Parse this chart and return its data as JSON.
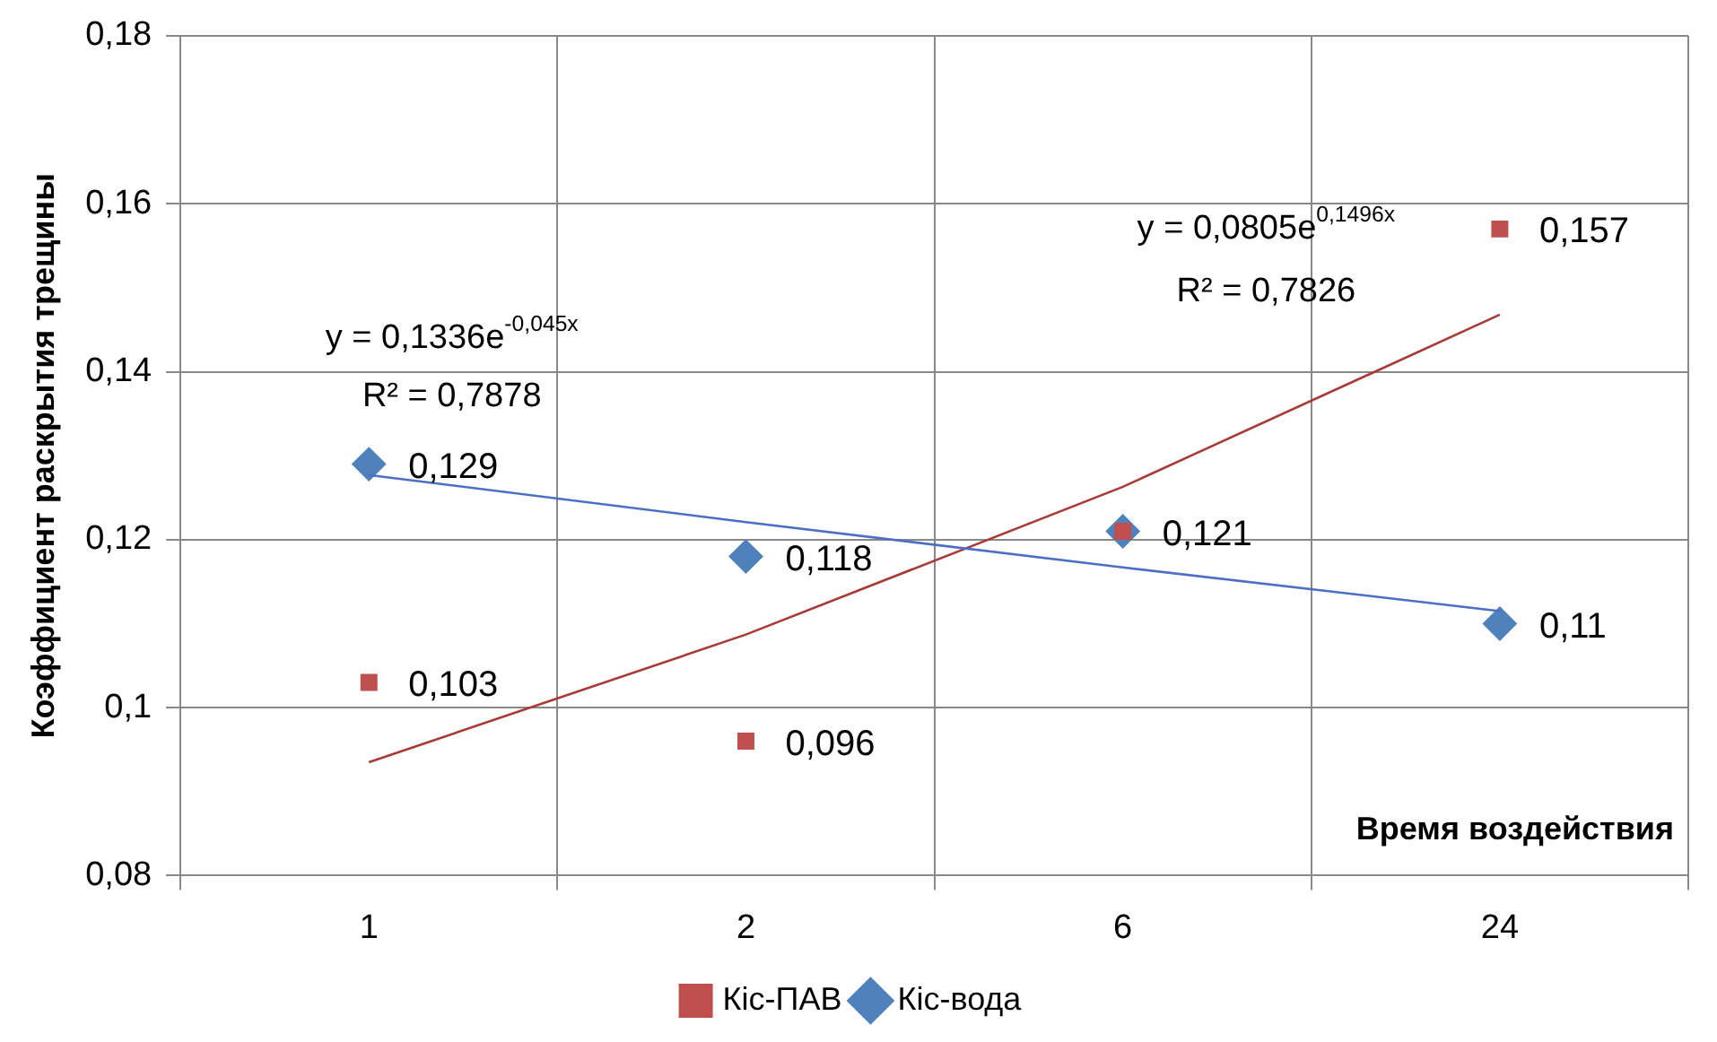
{
  "chart_data": {
    "type": "scatter",
    "xlabel": "Время воздействия",
    "ylabel": "Коэффициент раскрытия трещины",
    "categories": [
      "1",
      "2",
      "6",
      "24"
    ],
    "series": [
      {
        "name": "Кіс-вода",
        "color": "#4f81bd",
        "marker": "diamond",
        "values": [
          0.129,
          0.118,
          0.121,
          0.11
        ],
        "value_labels": [
          "0,129",
          "0,118",
          "0,121",
          "0,11"
        ]
      },
      {
        "name": "Кіс-ПАВ",
        "color": "#c0504d",
        "marker": "square",
        "values": [
          0.103,
          0.096,
          0.121,
          0.157
        ],
        "value_labels": [
          "0,103",
          "0,096",
          null,
          "0,157"
        ]
      },
      {
        "type": "line",
        "color": "#4a6fc4",
        "marker": "none",
        "values": [
          0.1277,
          0.1221,
          0.1167,
          0.1115
        ]
      },
      {
        "type": "line",
        "color": "#a83a38",
        "marker": "none",
        "values": [
          0.0935,
          0.1087,
          0.1263,
          0.1468
        ]
      }
    ],
    "ylim": [
      0.08,
      0.18
    ],
    "yticks": [
      {
        "value": 0.08,
        "label": "0,08"
      },
      {
        "value": 0.1,
        "label": "0,1"
      },
      {
        "value": 0.12,
        "label": "0,12"
      },
      {
        "value": 0.14,
        "label": "0,14"
      },
      {
        "value": 0.16,
        "label": "0,16"
      },
      {
        "value": 0.18,
        "label": "0,18"
      }
    ],
    "grid": true,
    "legend": "bottom",
    "annotations": [
      "y = 0,1336e$^{-0,045x}$",
      "R² = 0,7878",
      "y = 0,0805e$^{0,1496x}$",
      "R² = 0,7826"
    ]
  }
}
